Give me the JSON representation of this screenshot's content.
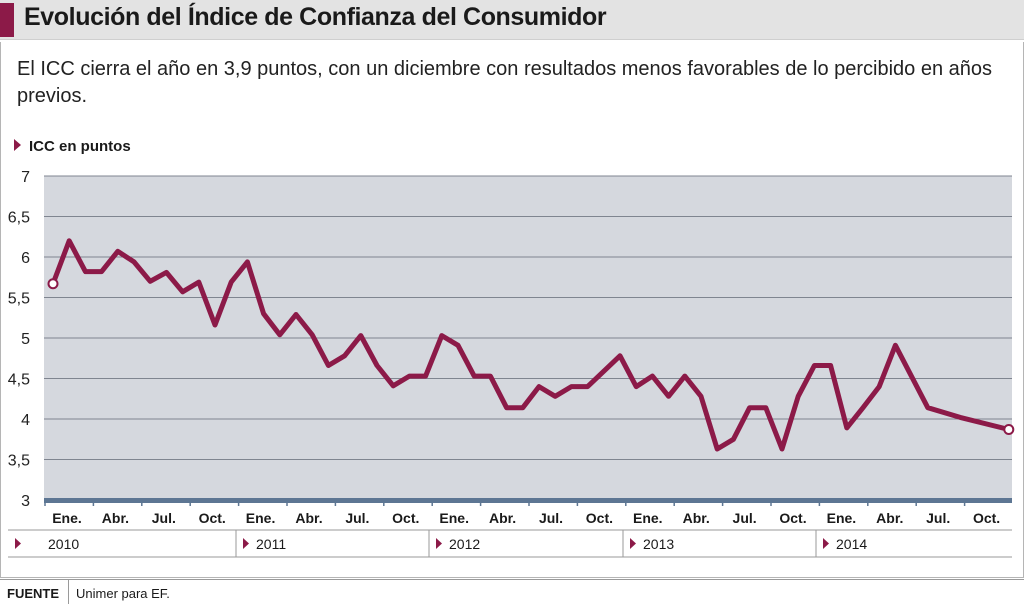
{
  "title": "Evolución del Índice de Confianza del Consumidor",
  "subtitle": "El ICC cierra el año en 3,9 puntos, con un diciembre con resultados menos favorables de lo percibido en años previos.",
  "footer": {
    "label": "FUENTE",
    "source": "Unimer para EF."
  },
  "colors": {
    "line": "#8c1a48",
    "accent": "#8c1a48",
    "plot_bg": "#d5d8de",
    "axis": "#5d7693"
  },
  "chart_data": {
    "type": "line",
    "ylabel": "ICC en puntos",
    "ylim": [
      3,
      7
    ],
    "y_ticks": [
      "7",
      "6,5",
      "6",
      "5,5",
      "5",
      "4,5",
      "4",
      "3,5",
      "3"
    ],
    "grid": true,
    "x_tick_labels": [
      "Ene.",
      "Abr.",
      "Jul.",
      "Oct.",
      "Ene.",
      "Abr.",
      "Jul.",
      "Oct.",
      "Ene.",
      "Abr.",
      "Jul.",
      "Oct.",
      "Ene.",
      "Abr.",
      "Jul.",
      "Oct.",
      "Ene.",
      "Abr.",
      "Jul.",
      "Oct."
    ],
    "years": [
      "2010",
      "2011",
      "2012",
      "2013",
      "2014"
    ],
    "series": [
      {
        "x": [
          0,
          1,
          2,
          3,
          4,
          5,
          6,
          7,
          8,
          9,
          10,
          11,
          12,
          13,
          14,
          15,
          16,
          17,
          18,
          19,
          20,
          21,
          22,
          23,
          24,
          25,
          26,
          27,
          28,
          29,
          30,
          31,
          32,
          33,
          35,
          36,
          37,
          38,
          39,
          40,
          41,
          42,
          43,
          44,
          45,
          46,
          47,
          48,
          49,
          50,
          51,
          52,
          54,
          56,
          59
        ],
        "values": [
          5.67,
          6.2,
          5.82,
          5.82,
          6.07,
          5.94,
          5.7,
          5.81,
          5.57,
          5.69,
          5.16,
          5.69,
          5.94,
          5.3,
          5.04,
          5.29,
          5.04,
          4.66,
          4.78,
          5.03,
          4.66,
          4.41,
          4.53,
          4.53,
          5.03,
          4.91,
          4.53,
          4.53,
          4.14,
          4.14,
          4.4,
          4.28,
          4.4,
          4.4,
          4.78,
          4.4,
          4.53,
          4.28,
          4.53,
          4.28,
          3.63,
          3.75,
          4.14,
          4.14,
          3.63,
          4.28,
          4.66,
          4.66,
          3.89,
          4.14,
          4.4,
          4.91,
          4.14,
          4.02,
          3.87
        ]
      }
    ],
    "endpoint_markers": true
  }
}
